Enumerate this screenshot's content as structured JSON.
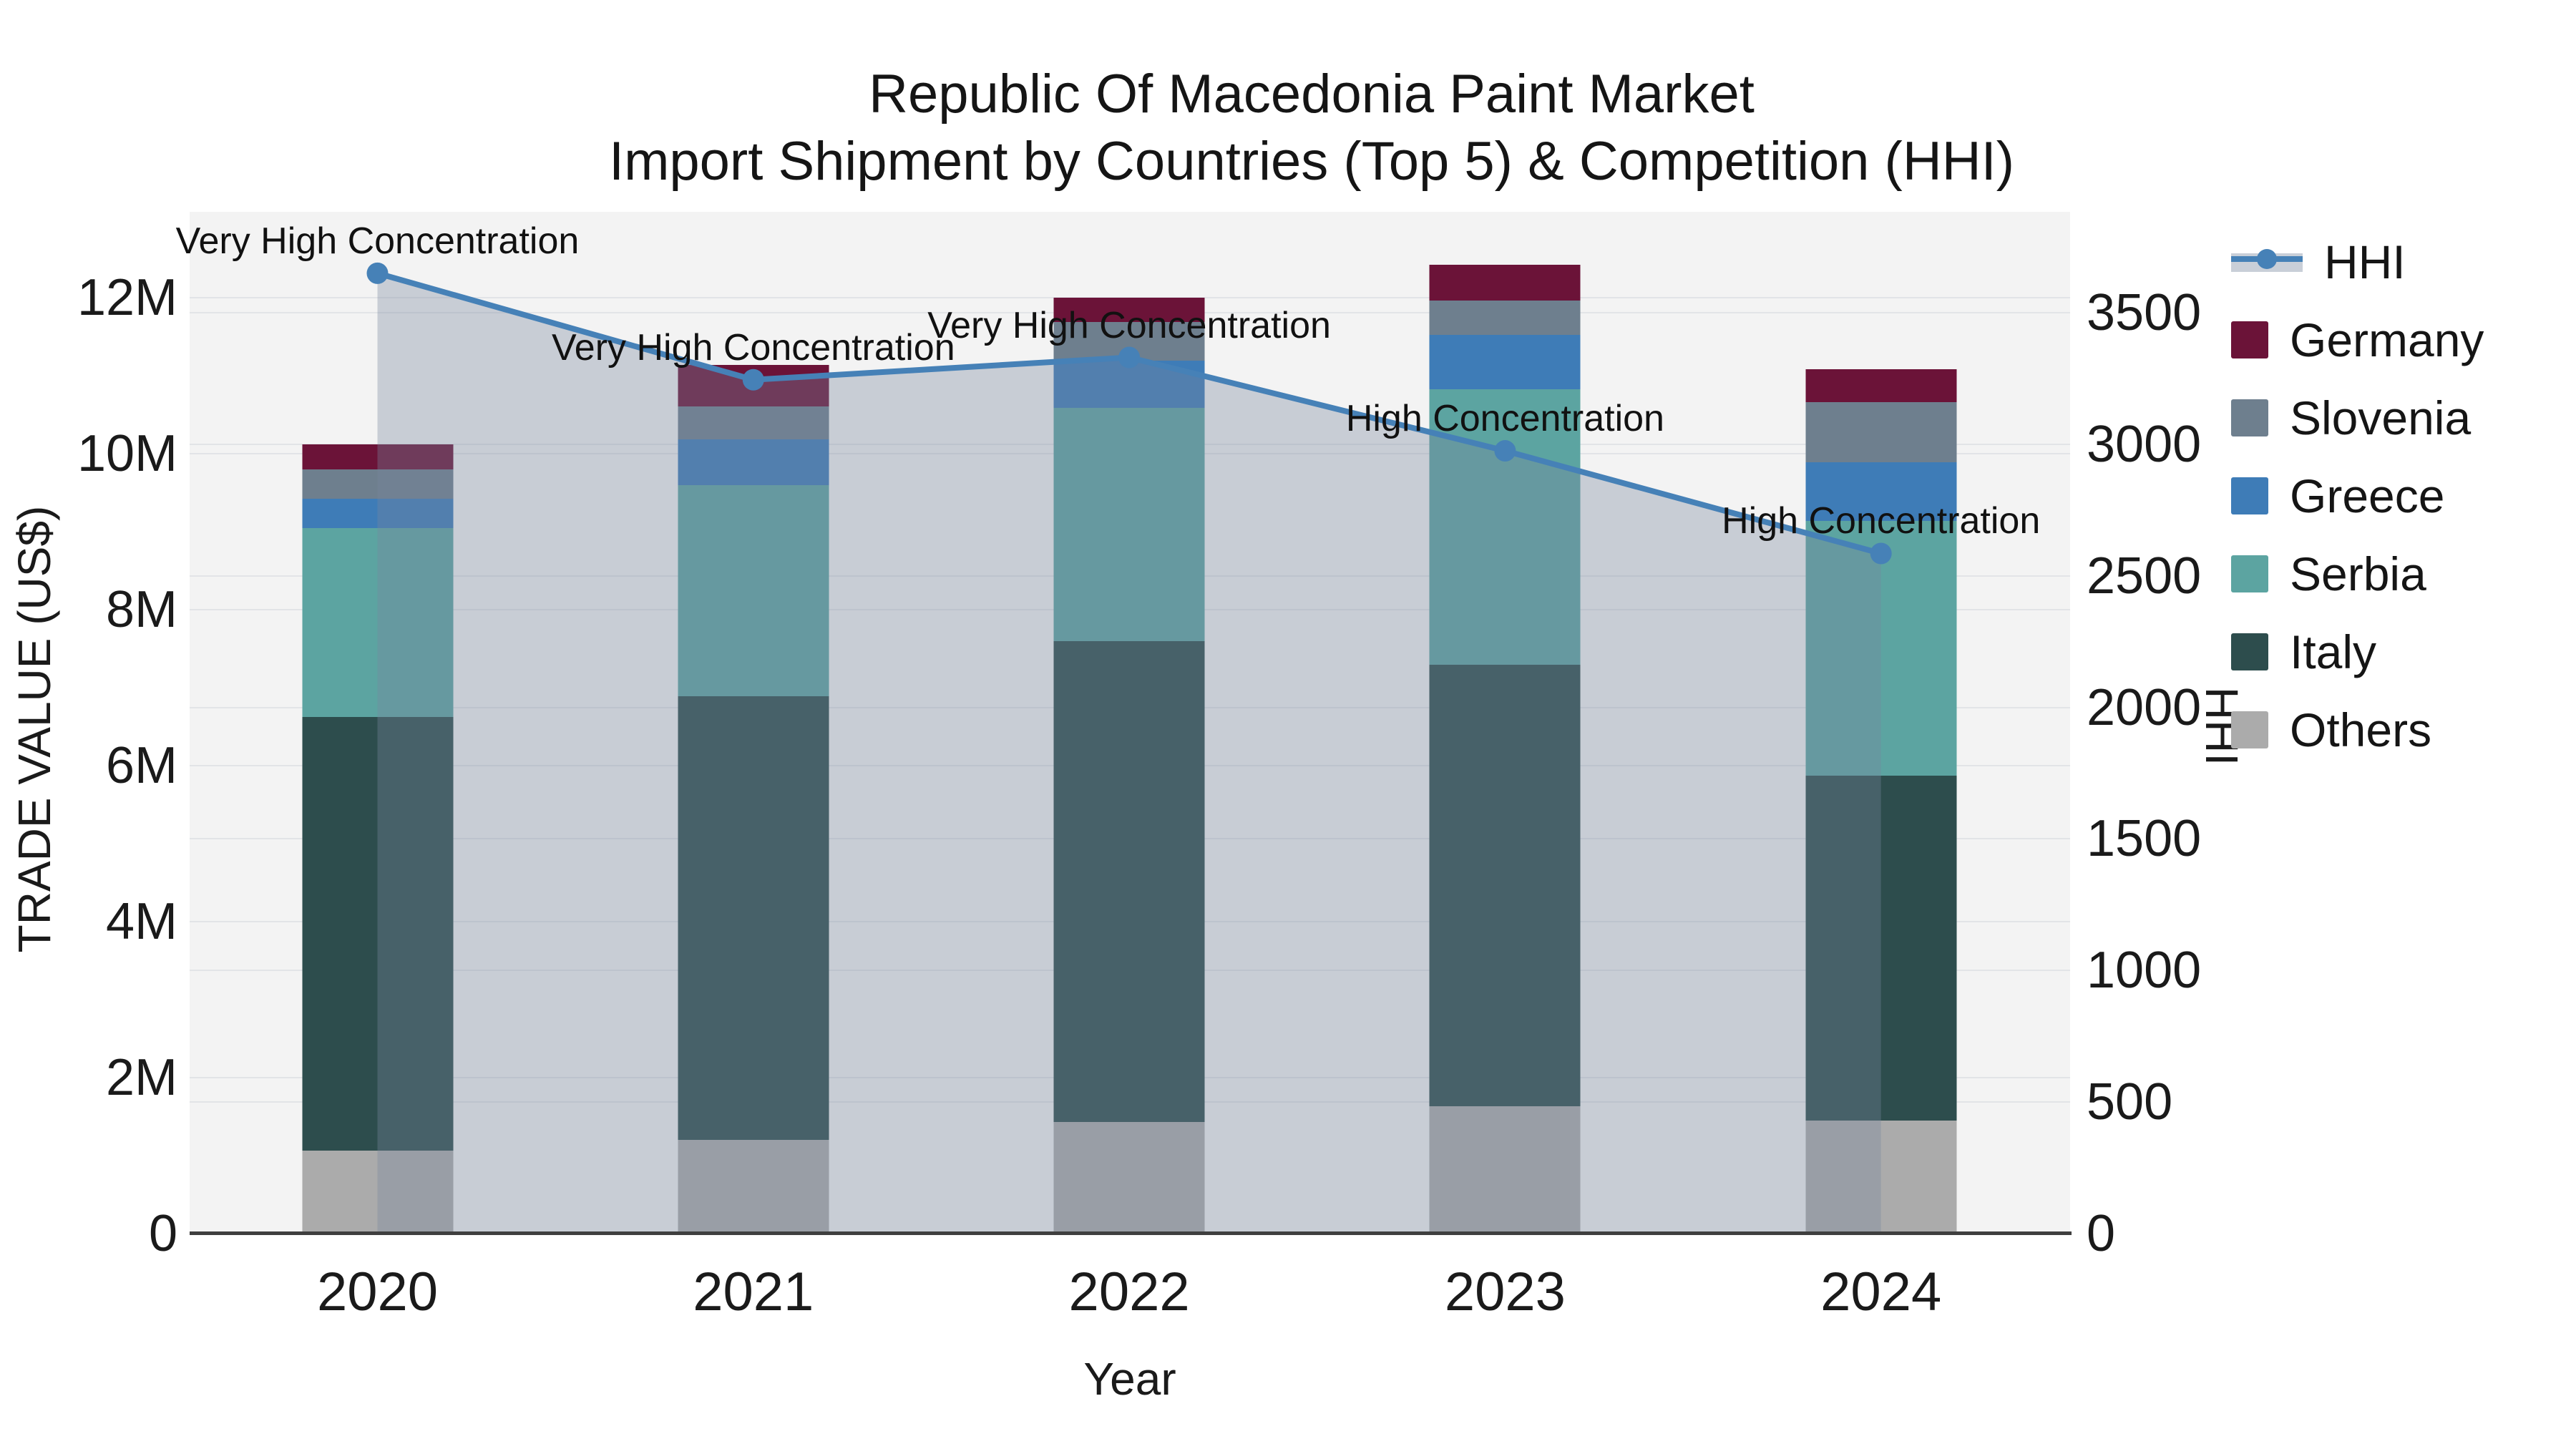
{
  "title": {
    "line1": "Republic Of Macedonia Paint Market",
    "line2": "Import Shipment by Countries (Top 5) & Competition (HHI)"
  },
  "axes": {
    "x_title": "Year",
    "y_left_title": "TRADE VALUE (US$)",
    "y_right_title": "HHI",
    "y_left_ticks": [
      {
        "label": "0",
        "value": 0
      },
      {
        "label": "2M",
        "value": 2
      },
      {
        "label": "4M",
        "value": 4
      },
      {
        "label": "6M",
        "value": 6
      },
      {
        "label": "8M",
        "value": 8
      },
      {
        "label": "10M",
        "value": 10
      },
      {
        "label": "12M",
        "value": 12
      }
    ],
    "y_right_ticks": [
      {
        "label": "0",
        "value": 0
      },
      {
        "label": "500",
        "value": 500
      },
      {
        "label": "1000",
        "value": 1000
      },
      {
        "label": "1500",
        "value": 1500
      },
      {
        "label": "2000",
        "value": 2000
      },
      {
        "label": "2500",
        "value": 2500
      },
      {
        "label": "3000",
        "value": 3000
      },
      {
        "label": "3500",
        "value": 3500
      }
    ]
  },
  "colors": {
    "hhi_line": "#4681b7",
    "area_overlay": "rgba(121,135,158,0.35)",
    "plot_background": "#f3f3f3",
    "gridline": "#e2e4e7",
    "axis_line": "#3f3f3f"
  },
  "chart_data": {
    "type": "combo-stacked-bar-line",
    "title": "Republic Of Macedonia Paint Market — Import Shipment by Countries (Top 5) & Competition (HHI)",
    "categories": [
      "2020",
      "2021",
      "2022",
      "2023",
      "2024"
    ],
    "xlabel": "Year",
    "ylabel_left": "TRADE VALUE (US$)",
    "ylabel_right": "HHI",
    "y_left_range_millions": [
      0,
      13.1
    ],
    "y_right_range": [
      0,
      3883
    ],
    "grid": true,
    "legend_position": "right",
    "bar_unit": "millions US$",
    "bar_series": [
      {
        "name": "Germany",
        "color": "#6b1338",
        "values": [
          0.32,
          0.53,
          0.31,
          0.46,
          0.42
        ]
      },
      {
        "name": "Slovenia",
        "color": "#6e7f8e",
        "values": [
          0.38,
          0.43,
          0.5,
          0.44,
          0.77
        ]
      },
      {
        "name": "Greece",
        "color": "#3e7cb7",
        "values": [
          0.37,
          0.58,
          0.6,
          0.69,
          0.75
        ]
      },
      {
        "name": "Serbia",
        "color": "#5ca4a1",
        "values": [
          2.43,
          2.71,
          2.99,
          3.54,
          3.27
        ]
      },
      {
        "name": "Italy",
        "color": "#2d4d4d",
        "values": [
          5.56,
          5.69,
          6.17,
          5.66,
          4.42
        ]
      },
      {
        "name": "Others",
        "color": "#ababab",
        "values": [
          1.06,
          1.2,
          1.43,
          1.63,
          1.45
        ]
      }
    ],
    "bar_totals_millions": [
      10.12,
      11.14,
      12.0,
      12.42,
      11.08
    ],
    "line_series": {
      "name": "HHI",
      "axis": "right",
      "color": "#4681b7",
      "has_area_fill": true,
      "values": [
        3650,
        3245,
        3330,
        2975,
        2585
      ]
    },
    "annotations": [
      {
        "category": "2020",
        "text": "Very High Concentration"
      },
      {
        "category": "2021",
        "text": "Very High Concentration"
      },
      {
        "category": "2022",
        "text": "Very High Concentration"
      },
      {
        "category": "2023",
        "text": "High Concentration"
      },
      {
        "category": "2024",
        "text": "High Concentration"
      }
    ]
  },
  "legend": {
    "items": [
      {
        "label": "HHI",
        "type": "line"
      },
      {
        "label": "Germany",
        "type": "square",
        "color": "#6b1338"
      },
      {
        "label": "Slovenia",
        "type": "square",
        "color": "#6e7f8e"
      },
      {
        "label": "Greece",
        "type": "square",
        "color": "#3e7cb7"
      },
      {
        "label": "Serbia",
        "type": "square",
        "color": "#5ca4a1"
      },
      {
        "label": "Italy",
        "type": "square",
        "color": "#2d4d4d"
      },
      {
        "label": "Others",
        "type": "square",
        "color": "#ababab"
      }
    ]
  }
}
